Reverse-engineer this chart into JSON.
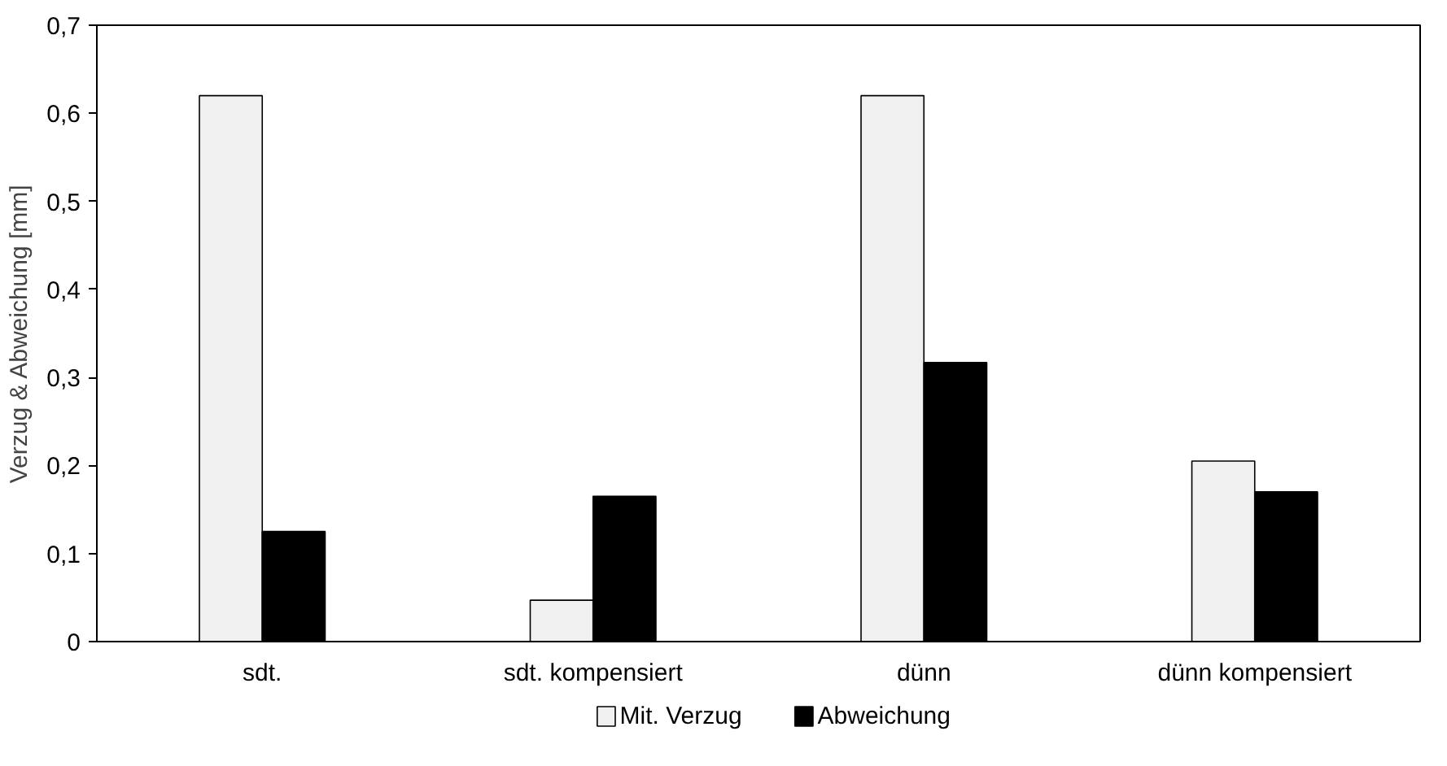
{
  "chart_data": {
    "type": "bar",
    "ylabel": "Verzug & Abweichung [mm]",
    "categories": [
      "sdt.",
      "sdt. kompensiert",
      "dünn",
      "dünn kompensiert"
    ],
    "series": [
      {
        "name": "Mit. Verzug",
        "color": "#f0f0f0",
        "values": [
          0.62,
          0.047,
          0.62,
          0.205
        ]
      },
      {
        "name": "Abweichung",
        "color": "#000000",
        "values": [
          0.125,
          0.165,
          0.317,
          0.17
        ]
      }
    ],
    "ylim": [
      0,
      0.7
    ],
    "yticks": [
      {
        "value": 0,
        "label": "0"
      },
      {
        "value": 0.1,
        "label": "0,1"
      },
      {
        "value": 0.2,
        "label": "0,2"
      },
      {
        "value": 0.3,
        "label": "0,3"
      },
      {
        "value": 0.4,
        "label": "0,4"
      },
      {
        "value": 0.5,
        "label": "0,5"
      },
      {
        "value": 0.6,
        "label": "0,6"
      },
      {
        "value": 0.7,
        "label": "0,7"
      }
    ],
    "grid": false,
    "legend": "bottom"
  }
}
